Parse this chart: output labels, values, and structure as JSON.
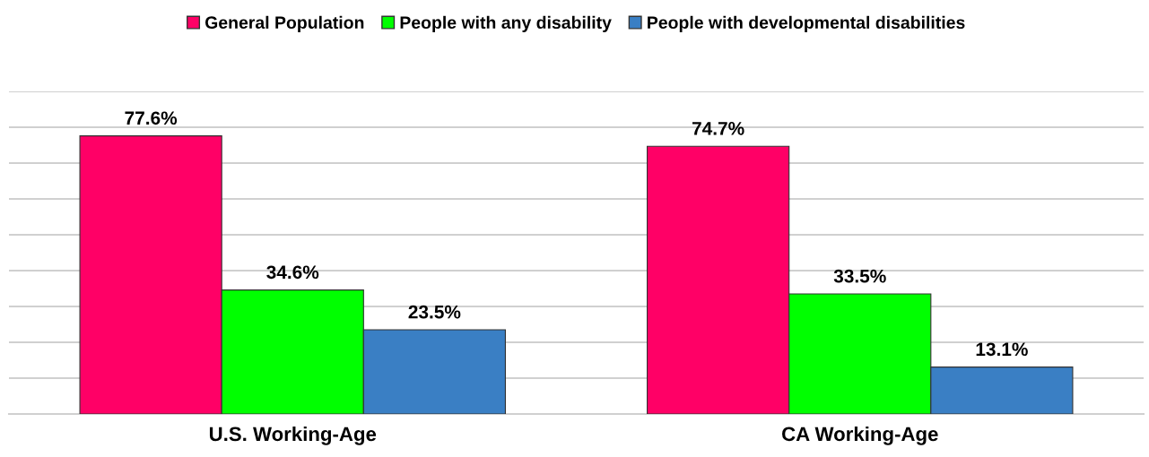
{
  "chart_data": {
    "type": "bar",
    "categories": [
      "U.S. Working-Age",
      "CA Working-Age"
    ],
    "series": [
      {
        "name": "General Population",
        "color": "#ff0066",
        "values": [
          77.6,
          74.7
        ],
        "value_labels": [
          "77.6%",
          "74.7%"
        ]
      },
      {
        "name": "People with any disability",
        "color": "#00ff00",
        "values": [
          34.6,
          33.5
        ],
        "value_labels": [
          "34.6%",
          "33.5%"
        ]
      },
      {
        "name": "People with developmental disabilities",
        "color": "#3a7fc4",
        "values": [
          23.5,
          13.1
        ],
        "value_labels": [
          "23.5%",
          "13.1%"
        ]
      }
    ],
    "ylim": [
      0,
      90
    ],
    "yticks": [
      {
        "value": 0,
        "label": null
      },
      {
        "value": 10,
        "label": null
      },
      {
        "value": 20,
        "label": null
      },
      {
        "value": 30,
        "label": null
      },
      {
        "value": 40,
        "label": null
      },
      {
        "value": 50,
        "label": null
      },
      {
        "value": 60,
        "label": null
      },
      {
        "value": 70,
        "label": null
      },
      {
        "value": 80,
        "label": null
      },
      {
        "value": 90,
        "label": null
      }
    ],
    "tick_labels": "x",
    "grid": "y",
    "legend": "top"
  }
}
